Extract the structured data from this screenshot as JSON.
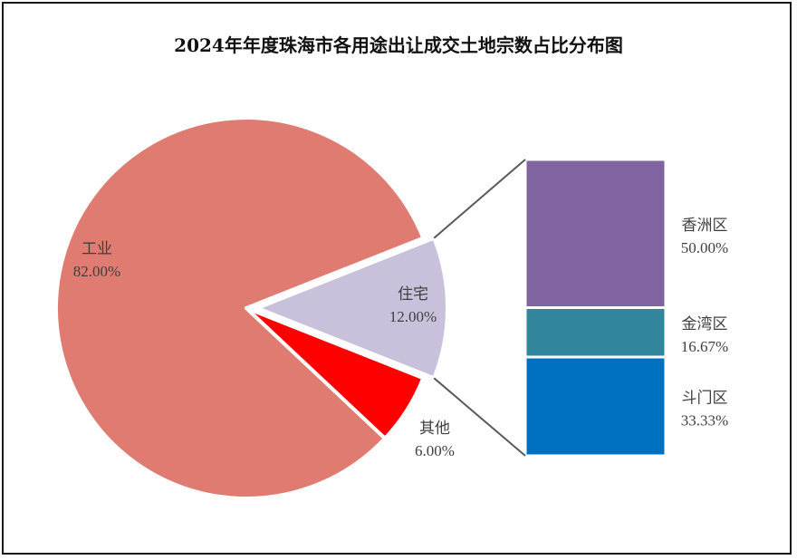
{
  "chart_data": {
    "type": "bar-of-pie",
    "title": "2024年年度珠海市各用途出让成交土地宗数占比分布图",
    "pie": {
      "slices": [
        {
          "label": "工业",
          "value": 82.0,
          "value_label": "82.00%",
          "color": "#E07B72"
        },
        {
          "label": "住宅",
          "value": 12.0,
          "value_label": "12.00%",
          "color": "#C9C1DC",
          "exploded": true
        },
        {
          "label": "其他",
          "value": 6.0,
          "value_label": "6.00%",
          "color": "#FF0000"
        }
      ]
    },
    "breakdown": {
      "of": "住宅",
      "segments": [
        {
          "label": "香洲区",
          "value": 50.0,
          "value_label": "50.00%",
          "color": "#8064A2"
        },
        {
          "label": "金湾区",
          "value": 16.67,
          "value_label": "16.67%",
          "color": "#31859C"
        },
        {
          "label": "斗门区",
          "value": 33.33,
          "value_label": "33.33%",
          "color": "#0070C0"
        }
      ]
    }
  }
}
